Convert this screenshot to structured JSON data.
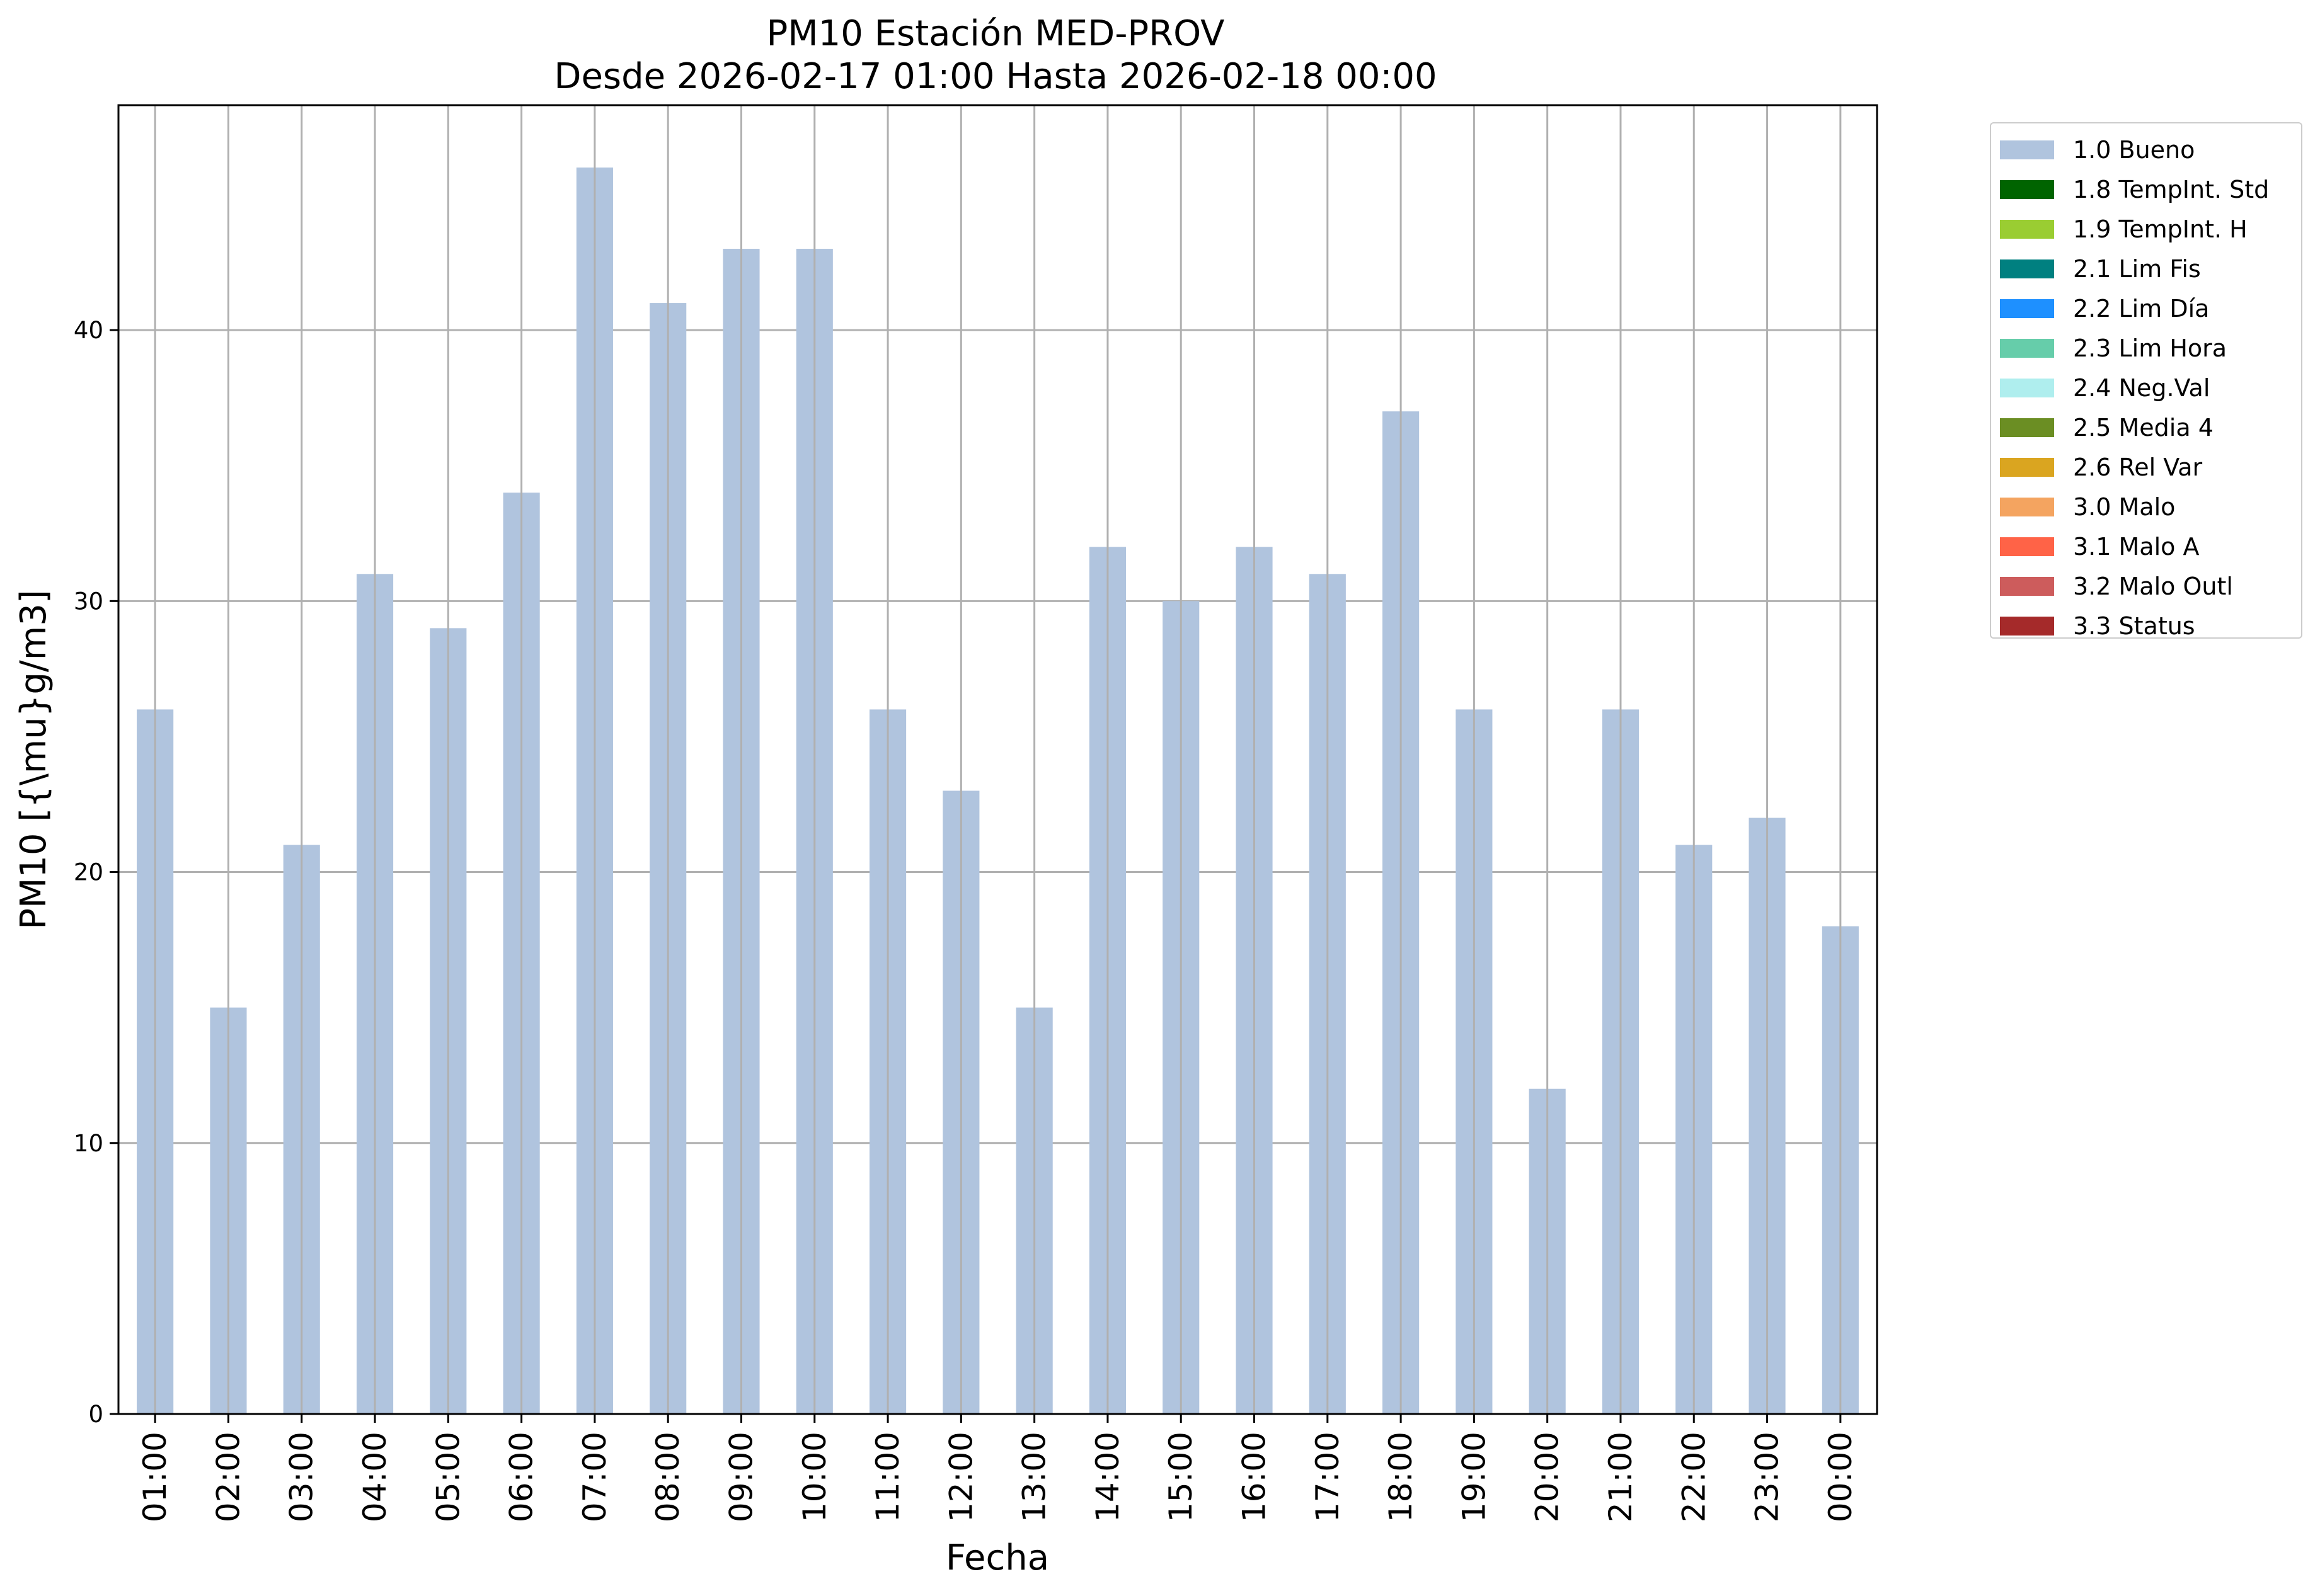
{
  "chart_data": {
    "type": "bar",
    "title": "PM10 Estación MED-PROV",
    "subtitle": "Desde 2026-02-17 01:00 Hasta 2026-02-18 00:00",
    "xlabel": "Fecha",
    "ylabel": "PM10 [{\\mu}g/m3]",
    "categories": [
      "01:00",
      "02:00",
      "03:00",
      "04:00",
      "05:00",
      "06:00",
      "07:00",
      "08:00",
      "09:00",
      "10:00",
      "11:00",
      "12:00",
      "13:00",
      "14:00",
      "15:00",
      "16:00",
      "17:00",
      "18:00",
      "19:00",
      "20:00",
      "21:00",
      "22:00",
      "23:00",
      "00:00"
    ],
    "series": [
      {
        "name": "1.0 Bueno",
        "color": "#b0c4de",
        "values": [
          26,
          15,
          21,
          31,
          29,
          34,
          46,
          41,
          43,
          43,
          26,
          23,
          15,
          32,
          30,
          32,
          31,
          37,
          26,
          12,
          26,
          21,
          22,
          18
        ]
      }
    ],
    "ylim": [
      0,
      48.3
    ],
    "yticks": [
      0,
      10,
      20,
      30,
      40
    ],
    "grid": true,
    "legend_position": "outside-right",
    "legend": [
      {
        "label": "1.0 Bueno",
        "color": "#b0c4de"
      },
      {
        "label": "1.8 TempInt. Std",
        "color": "#006400"
      },
      {
        "label": "1.9 TempInt. H",
        "color": "#9acd32"
      },
      {
        "label": "2.1 Lim Fis",
        "color": "#008080"
      },
      {
        "label": "2.2 Lim Día",
        "color": "#1e90ff"
      },
      {
        "label": "2.3 Lim Hora",
        "color": "#66cdaa"
      },
      {
        "label": "2.4 Neg.Val",
        "color": "#afeeee"
      },
      {
        "label": "2.5 Media 4",
        "color": "#6b8e23"
      },
      {
        "label": "2.6 Rel Var",
        "color": "#daa520"
      },
      {
        "label": "3.0 Malo",
        "color": "#f4a460"
      },
      {
        "label": "3.1 Malo A",
        "color": "#ff6347"
      },
      {
        "label": "3.2 Malo Outl",
        "color": "#cd5c5c"
      },
      {
        "label": "3.3 Status",
        "color": "#a52a2a"
      }
    ]
  }
}
